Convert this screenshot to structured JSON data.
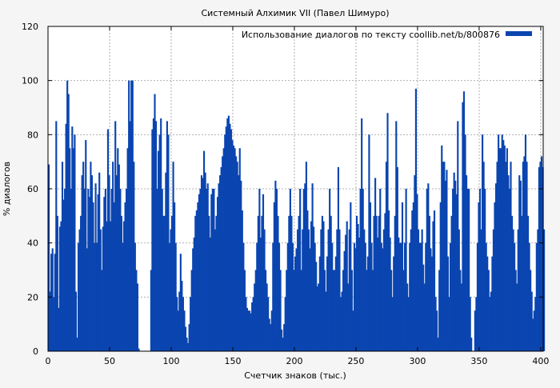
{
  "chart_data": {
    "type": "bar",
    "title": "Системный Алхимик VII (Павел Шимуро)",
    "xlabel": "Счетчик знаков (тыс.)",
    "ylabel": "% диалогов",
    "xlim": [
      0,
      402
    ],
    "ylim": [
      0,
      120
    ],
    "xticks": [
      0,
      50,
      100,
      150,
      200,
      250,
      300,
      350,
      400
    ],
    "yticks": [
      0,
      20,
      40,
      60,
      80,
      100,
      120
    ],
    "grid": true,
    "legend_position": "top-right",
    "bar_color": "#0a45b0",
    "series": [
      {
        "name": "Использование диалогов по тексту coollib.net/b/800876",
        "x_start": 0,
        "x_step": 1,
        "values": [
          69,
          22,
          36,
          38,
          20,
          36,
          85,
          50,
          16,
          46,
          48,
          70,
          56,
          60,
          84,
          100,
          95,
          75,
          60,
          83,
          75,
          80,
          22,
          5,
          40,
          45,
          50,
          65,
          70,
          60,
          78,
          38,
          60,
          57,
          70,
          65,
          55,
          40,
          62,
          40,
          58,
          66,
          45,
          30,
          46,
          57,
          60,
          48,
          82,
          65,
          48,
          60,
          70,
          55,
          85,
          65,
          75,
          69,
          60,
          50,
          40,
          48,
          55,
          60,
          75,
          100,
          85,
          100,
          100,
          70,
          40,
          30,
          25,
          1,
          0,
          0,
          0,
          0,
          0,
          0,
          0,
          0,
          0,
          30,
          82,
          86,
          95,
          85,
          60,
          74,
          80,
          86,
          60,
          50,
          50,
          66,
          85,
          80,
          40,
          45,
          50,
          70,
          55,
          40,
          20,
          15,
          22,
          36,
          26,
          20,
          15,
          9,
          5,
          3,
          10,
          20,
          30,
          38,
          42,
          50,
          52,
          55,
          58,
          60,
          65,
          64,
          74,
          66,
          60,
          62,
          50,
          42,
          58,
          60,
          60,
          45,
          50,
          57,
          62,
          65,
          68,
          72,
          75,
          80,
          83,
          86,
          87,
          84,
          82,
          78,
          76,
          75,
          72,
          70,
          65,
          75,
          63,
          52,
          40,
          30,
          20,
          16,
          15,
          15,
          14,
          18,
          20,
          25,
          30,
          40,
          50,
          60,
          42,
          50,
          58,
          45,
          30,
          25,
          20,
          12,
          10,
          15,
          40,
          55,
          63,
          60,
          50,
          40,
          30,
          8,
          5,
          10,
          20,
          30,
          40,
          50,
          60,
          50,
          40,
          30,
          35,
          38,
          45,
          50,
          60,
          30,
          45,
          60,
          62,
          70,
          52,
          45,
          38,
          48,
          62,
          46,
          40,
          33,
          24,
          25,
          35,
          45,
          50,
          48,
          30,
          22,
          35,
          45,
          60,
          50,
          40,
          30,
          30,
          35,
          45,
          68,
          45,
          20,
          22,
          30,
          37,
          43,
          48,
          25,
          45,
          55,
          30,
          15,
          40,
          38,
          50,
          47,
          42,
          60,
          86,
          60,
          45,
          40,
          30,
          35,
          80,
          55,
          40,
          30,
          50,
          64,
          50,
          42,
          50,
          60,
          40,
          38,
          45,
          51,
          70,
          88,
          52,
          42,
          30,
          20,
          35,
          50,
          85,
          68,
          42,
          40,
          40,
          55,
          30,
          40,
          60,
          25,
          20,
          40,
          45,
          52,
          55,
          65,
          97,
          58,
          45,
          40,
          40,
          45,
          32,
          25,
          40,
          60,
          62,
          50,
          38,
          35,
          48,
          52,
          20,
          15,
          5,
          30,
          55,
          76,
          70,
          70,
          63,
          67,
          35,
          20,
          40,
          50,
          60,
          66,
          63,
          58,
          85,
          45,
          30,
          25,
          92,
          96,
          80,
          65,
          60,
          60,
          20,
          5,
          0,
          0,
          15,
          20,
          40,
          55,
          60,
          45,
          80,
          70,
          60,
          40,
          35,
          30,
          20,
          22,
          35,
          45,
          55,
          62,
          70,
          80,
          75,
          75,
          80,
          78,
          76,
          70,
          75,
          65,
          60,
          70,
          50,
          45,
          40,
          30,
          25,
          45,
          65,
          63,
          50,
          70,
          72,
          80,
          70,
          50,
          40,
          30,
          22,
          12,
          15,
          20,
          40,
          45,
          68,
          70,
          72,
          68,
          45
        ]
      }
    ]
  }
}
